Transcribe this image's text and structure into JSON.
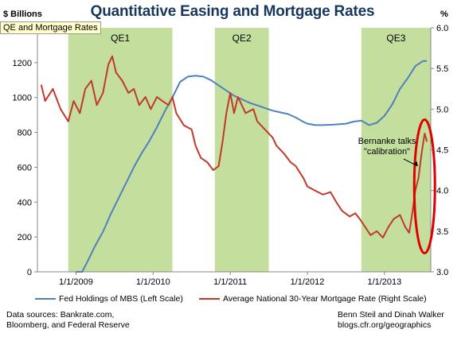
{
  "chart_data": {
    "type": "line",
    "title": "Quantitative Easing and Mortgage Rates",
    "tag": "QE and Mortgage Rates",
    "yunit_left": "$ Billions",
    "yunit_right": "%",
    "x_ticks": [
      "1/1/2009",
      "1/1/2010",
      "1/1/2011",
      "1/1/2012",
      "1/1/2013"
    ],
    "x_range": [
      2008.5,
      2013.6
    ],
    "y_left_range": [
      0,
      1400
    ],
    "y_left_ticks": [
      0,
      200,
      400,
      600,
      800,
      1000,
      1200
    ],
    "y_right_range": [
      3.0,
      6.0
    ],
    "y_right_ticks": [
      "3.0",
      "3.5",
      "4.0",
      "4.5",
      "5.0",
      "5.5",
      "6.0"
    ],
    "shaded_periods": [
      {
        "label": "QE1",
        "start": 2008.9,
        "end": 2010.25
      },
      {
        "label": "QE2",
        "start": 2010.8,
        "end": 2011.5
      },
      {
        "label": "QE3",
        "start": 2012.7,
        "end": 2013.6
      }
    ],
    "annotation": {
      "lines": [
        "Bernanke talks",
        "\"calibration\""
      ],
      "date": 2013.4,
      "rate": 4.3
    },
    "series": [
      {
        "name": "Fed Holdings of MBS (Left Scale)",
        "axis": "left",
        "color": "#4f81bd",
        "points": [
          [
            2009.0,
            0
          ],
          [
            2009.08,
            0
          ],
          [
            2009.15,
            60
          ],
          [
            2009.25,
            150
          ],
          [
            2009.35,
            230
          ],
          [
            2009.45,
            330
          ],
          [
            2009.55,
            420
          ],
          [
            2009.65,
            510
          ],
          [
            2009.75,
            600
          ],
          [
            2009.85,
            680
          ],
          [
            2009.95,
            750
          ],
          [
            2010.05,
            830
          ],
          [
            2010.15,
            920
          ],
          [
            2010.25,
            1000
          ],
          [
            2010.35,
            1090
          ],
          [
            2010.45,
            1120
          ],
          [
            2010.55,
            1125
          ],
          [
            2010.65,
            1120
          ],
          [
            2010.75,
            1100
          ],
          [
            2010.85,
            1070
          ],
          [
            2010.95,
            1040
          ],
          [
            2011.05,
            1010
          ],
          [
            2011.15,
            990
          ],
          [
            2011.25,
            970
          ],
          [
            2011.35,
            955
          ],
          [
            2011.45,
            940
          ],
          [
            2011.55,
            925
          ],
          [
            2011.65,
            915
          ],
          [
            2011.75,
            905
          ],
          [
            2011.85,
            885
          ],
          [
            2011.95,
            860
          ],
          [
            2012.0,
            850
          ],
          [
            2012.1,
            842
          ],
          [
            2012.2,
            842
          ],
          [
            2012.35,
            845
          ],
          [
            2012.5,
            850
          ],
          [
            2012.6,
            862
          ],
          [
            2012.7,
            868
          ],
          [
            2012.8,
            842
          ],
          [
            2012.9,
            855
          ],
          [
            2013.0,
            895
          ],
          [
            2013.1,
            960
          ],
          [
            2013.2,
            1050
          ],
          [
            2013.3,
            1110
          ],
          [
            2013.4,
            1180
          ],
          [
            2013.5,
            1210
          ],
          [
            2013.55,
            1210
          ]
        ]
      },
      {
        "name": "Average National 30-Year Mortgage Rate (Right Scale)",
        "axis": "right",
        "color": "#c0392b",
        "points": [
          [
            2008.55,
            5.3
          ],
          [
            2008.6,
            5.1
          ],
          [
            2008.7,
            5.25
          ],
          [
            2008.8,
            5.0
          ],
          [
            2008.9,
            4.85
          ],
          [
            2008.97,
            5.1
          ],
          [
            2009.05,
            4.95
          ],
          [
            2009.12,
            5.25
          ],
          [
            2009.2,
            5.35
          ],
          [
            2009.27,
            5.05
          ],
          [
            2009.35,
            5.2
          ],
          [
            2009.42,
            5.55
          ],
          [
            2009.47,
            5.65
          ],
          [
            2009.52,
            5.45
          ],
          [
            2009.6,
            5.35
          ],
          [
            2009.68,
            5.2
          ],
          [
            2009.75,
            5.25
          ],
          [
            2009.82,
            5.05
          ],
          [
            2009.9,
            5.15
          ],
          [
            2009.97,
            5.0
          ],
          [
            2010.05,
            5.15
          ],
          [
            2010.12,
            5.1
          ],
          [
            2010.2,
            5.05
          ],
          [
            2010.25,
            5.15
          ],
          [
            2010.3,
            4.95
          ],
          [
            2010.4,
            4.8
          ],
          [
            2010.5,
            4.75
          ],
          [
            2010.55,
            4.55
          ],
          [
            2010.62,
            4.4
          ],
          [
            2010.7,
            4.35
          ],
          [
            2010.78,
            4.25
          ],
          [
            2010.85,
            4.3
          ],
          [
            2010.9,
            4.6
          ],
          [
            2010.95,
            4.95
          ],
          [
            2011.0,
            5.2
          ],
          [
            2011.05,
            4.95
          ],
          [
            2011.1,
            5.15
          ],
          [
            2011.2,
            4.95
          ],
          [
            2011.3,
            5.0
          ],
          [
            2011.35,
            4.85
          ],
          [
            2011.45,
            4.75
          ],
          [
            2011.55,
            4.65
          ],
          [
            2011.6,
            4.55
          ],
          [
            2011.7,
            4.45
          ],
          [
            2011.78,
            4.35
          ],
          [
            2011.85,
            4.3
          ],
          [
            2011.95,
            4.15
          ],
          [
            2012.0,
            4.05
          ],
          [
            2012.1,
            4.0
          ],
          [
            2012.2,
            3.95
          ],
          [
            2012.3,
            3.98
          ],
          [
            2012.38,
            3.85
          ],
          [
            2012.45,
            3.75
          ],
          [
            2012.55,
            3.68
          ],
          [
            2012.62,
            3.72
          ],
          [
            2012.68,
            3.65
          ],
          [
            2012.75,
            3.55
          ],
          [
            2012.82,
            3.45
          ],
          [
            2012.9,
            3.5
          ],
          [
            2012.98,
            3.42
          ],
          [
            2013.05,
            3.55
          ],
          [
            2013.12,
            3.65
          ],
          [
            2013.2,
            3.7
          ],
          [
            2013.27,
            3.55
          ],
          [
            2013.32,
            3.48
          ],
          [
            2013.36,
            3.72
          ],
          [
            2013.4,
            4.0
          ],
          [
            2013.44,
            4.15
          ],
          [
            2013.48,
            4.45
          ],
          [
            2013.52,
            4.7
          ],
          [
            2013.55,
            4.6
          ]
        ]
      }
    ]
  },
  "legend": {
    "items": [
      {
        "label": "Fed Holdings of MBS (Left Scale)",
        "color": "#4f81bd"
      },
      {
        "label": "Average National 30-Year Mortgage Rate (Right Scale)",
        "color": "#c0392b"
      }
    ]
  },
  "footer": {
    "source_line1": "Data sources: Bankrate.com,",
    "source_line2": "Bloomberg, and Federal Reserve",
    "credit_line1": "Benn Steil and Dinah Walker",
    "credit_line2": "blogs.cfr.org/geographics"
  },
  "colors": {
    "shade": "#c4de9e",
    "ellipse": "#e00000",
    "axis": "#888888"
  }
}
